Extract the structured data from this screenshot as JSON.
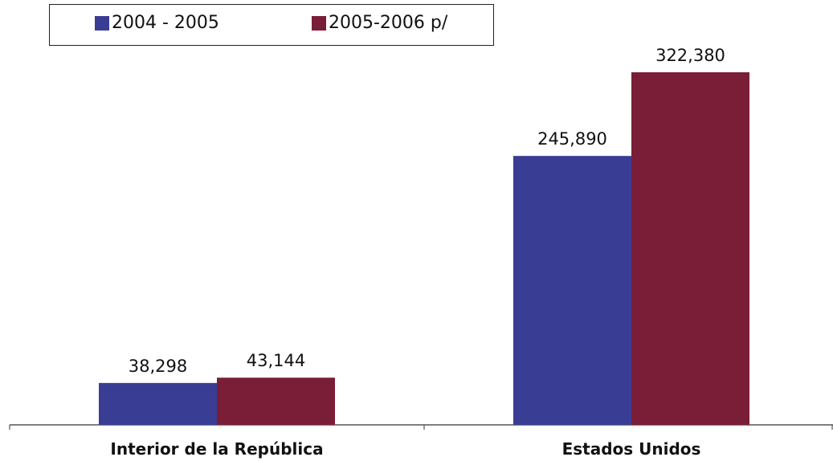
{
  "chart_data": {
    "type": "bar",
    "categories": [
      "Interior de la República",
      "Estados Unidos"
    ],
    "series": [
      {
        "name": "2004 - 2005",
        "values": [
          38298,
          245890
        ],
        "labels": [
          "38,298",
          "245,890"
        ],
        "color": "#3a3d94"
      },
      {
        "name": "2005-2006 p/",
        "values": [
          43144,
          322380
        ],
        "labels": [
          "43,144",
          "322,380"
        ],
        "color": "#7a1d37"
      }
    ],
    "ylim": [
      0,
      350000
    ],
    "grid": false,
    "legend_position": "top-left"
  }
}
